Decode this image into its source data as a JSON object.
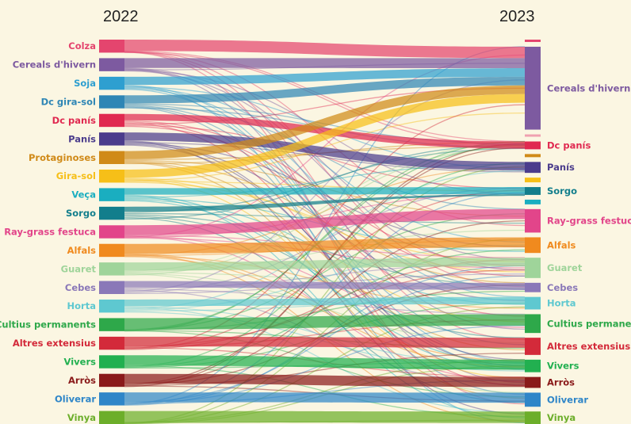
{
  "years": {
    "left": "2022",
    "right": "2023"
  },
  "chart_data": {
    "type": "sankey",
    "title": "",
    "left_column": "2022",
    "right_column": "2023",
    "left_nodes": [
      {
        "name": "Colza",
        "color": "#e4456e",
        "value": 16
      },
      {
        "name": "Cereals d'hivern",
        "color": "#7d5aa0",
        "value": 16
      },
      {
        "name": "Soja",
        "color": "#2e9fd0",
        "value": 16
      },
      {
        "name": "Dc gira-sol",
        "color": "#2f86b5",
        "value": 16
      },
      {
        "name": "Dc panís",
        "color": "#e02950",
        "value": 16
      },
      {
        "name": "Panís",
        "color": "#4b3c8c",
        "value": 16
      },
      {
        "name": "Protaginoses",
        "color": "#d08a18",
        "value": 16
      },
      {
        "name": "Gira-sol",
        "color": "#f6bf18",
        "value": 16
      },
      {
        "name": "Veça",
        "color": "#1aaec0",
        "value": 16
      },
      {
        "name": "Sorgo",
        "color": "#127e8c",
        "value": 16
      },
      {
        "name": "Ray-grass festuca",
        "color": "#e2458a",
        "value": 16
      },
      {
        "name": "Alfals",
        "color": "#f08a1e",
        "value": 16
      },
      {
        "name": "Guaret",
        "color": "#9fd49a",
        "value": 16
      },
      {
        "name": "Cebes",
        "color": "#8a78b8",
        "value": 16
      },
      {
        "name": "Horta",
        "color": "#5ec8d0",
        "value": 16
      },
      {
        "name": "Cultius permanents",
        "color": "#2ea84a",
        "value": 16
      },
      {
        "name": "Altres extensius",
        "color": "#d32a3a",
        "value": 16
      },
      {
        "name": "Vivers",
        "color": "#22b050",
        "value": 16
      },
      {
        "name": "Arròs",
        "color": "#8a1a1a",
        "value": 16
      },
      {
        "name": "Oliverar",
        "color": "#2f86c8",
        "value": 16
      },
      {
        "name": "Vinya",
        "color": "#6cae2a",
        "value": 16
      }
    ],
    "right_nodes": [
      {
        "name": "",
        "color": "#e4456e",
        "value": 3
      },
      {
        "name": "Cereals d'hivern",
        "color": "#7d5aa0",
        "value": 106
      },
      {
        "name": "",
        "color": "#f0a0b0",
        "value": 3
      },
      {
        "name": "Dc panís",
        "color": "#e02950",
        "value": 10
      },
      {
        "name": "",
        "color": "#d08a18",
        "value": 4
      },
      {
        "name": "Panís",
        "color": "#4b3c8c",
        "value": 14
      },
      {
        "name": "",
        "color": "#f6bf18",
        "value": 6
      },
      {
        "name": "Sorgo",
        "color": "#127e8c",
        "value": 10
      },
      {
        "name": "",
        "color": "#1aaec0",
        "value": 6
      },
      {
        "name": "Ray-grass festuca",
        "color": "#e2458a",
        "value": 30
      },
      {
        "name": "Alfals",
        "color": "#f08a1e",
        "value": 20
      },
      {
        "name": "Guaret",
        "color": "#9fd49a",
        "value": 26
      },
      {
        "name": "Cebes",
        "color": "#8a78b8",
        "value": 12
      },
      {
        "name": "Horta",
        "color": "#5ec8d0",
        "value": 16
      },
      {
        "name": "Cultius permanents",
        "color": "#2ea84a",
        "value": 24
      },
      {
        "name": "Altres extensius",
        "color": "#d32a3a",
        "value": 22
      },
      {
        "name": "Vivers",
        "color": "#22b050",
        "value": 16
      },
      {
        "name": "Arròs",
        "color": "#8a1a1a",
        "value": 14
      },
      {
        "name": "Oliverar",
        "color": "#2f86c8",
        "value": 18
      },
      {
        "name": "Vinya",
        "color": "#6cae2a",
        "value": 16
      }
    ],
    "main_flows": [
      {
        "from": "Colza",
        "to": "Cereals d'hivern",
        "value": 14
      },
      {
        "from": "Cereals d'hivern",
        "to": "Cereals d'hivern",
        "value": 12
      },
      {
        "from": "Soja",
        "to": "Cereals d'hivern",
        "value": 10
      },
      {
        "from": "Dc gira-sol",
        "to": "Cereals d'hivern",
        "value": 10
      },
      {
        "from": "Dc panís",
        "to": "Dc panís",
        "value": 8
      },
      {
        "from": "Panís",
        "to": "Panís",
        "value": 10
      },
      {
        "from": "Protaginoses",
        "to": "Cereals d'hivern",
        "value": 10
      },
      {
        "from": "Gira-sol",
        "to": "Cereals d'hivern",
        "value": 10
      },
      {
        "from": "Veça",
        "to": "Sorgo",
        "value": 8
      },
      {
        "from": "Sorgo",
        "to": "Sorgo",
        "value": 6
      },
      {
        "from": "Ray-grass festuca",
        "to": "Ray-grass festuca",
        "value": 12
      },
      {
        "from": "Alfals",
        "to": "Alfals",
        "value": 12
      },
      {
        "from": "Guaret",
        "to": "Guaret",
        "value": 10
      },
      {
        "from": "Cebes",
        "to": "Cebes",
        "value": 8
      },
      {
        "from": "Horta",
        "to": "Horta",
        "value": 8
      },
      {
        "from": "Cultius permanents",
        "to": "Cultius permanents",
        "value": 14
      },
      {
        "from": "Altres extensius",
        "to": "Altres extensius",
        "value": 12
      },
      {
        "from": "Vivers",
        "to": "Vivers",
        "value": 12
      },
      {
        "from": "Arròs",
        "to": "Arròs",
        "value": 12
      },
      {
        "from": "Oliverar",
        "to": "Oliverar",
        "value": 12
      },
      {
        "from": "Vinya",
        "to": "Vinya",
        "value": 14
      }
    ]
  }
}
